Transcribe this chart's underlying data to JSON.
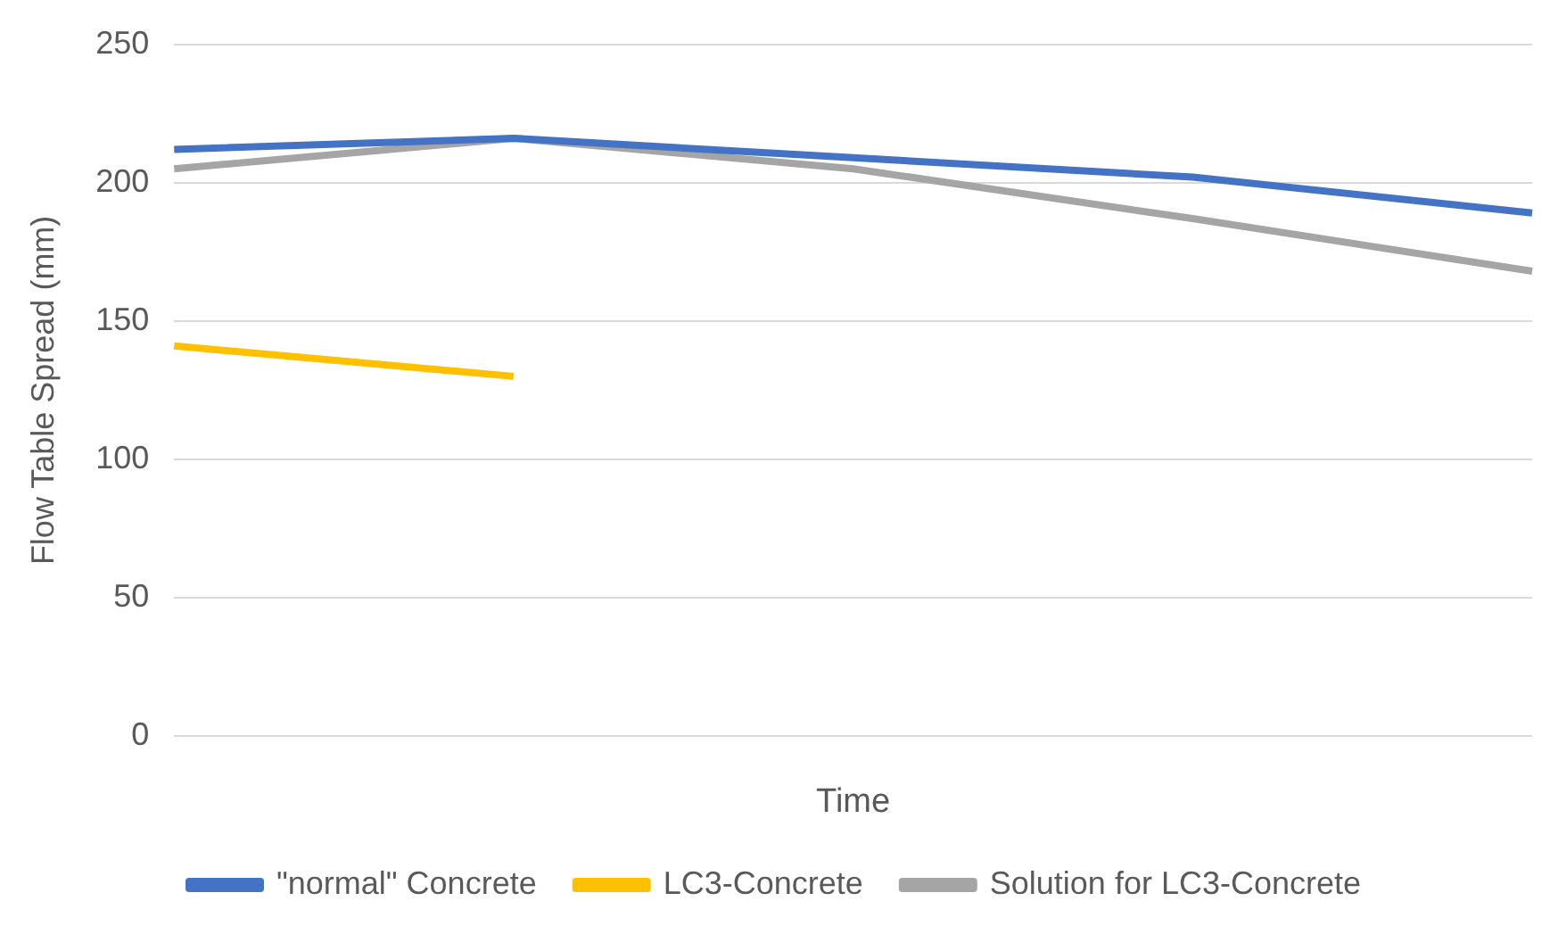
{
  "chart_data": {
    "type": "line",
    "xlabel": "Time",
    "ylabel": "Flow Table Spread (mm)",
    "categories": [
      null,
      null,
      null,
      null,
      null
    ],
    "series": [
      {
        "name": "\"normal\" Concrete",
        "color": "#4472c4",
        "values": [
          212,
          216,
          209,
          202,
          189
        ]
      },
      {
        "name": "LC3-Concrete",
        "color": "#ffc000",
        "values": [
          141,
          130,
          null,
          null,
          null
        ]
      },
      {
        "name": "Solution for LC3-Concrete",
        "color": "#a5a5a5",
        "values": [
          205,
          216,
          205,
          187,
          168
        ]
      }
    ],
    "ylim": [
      0,
      250
    ],
    "yticks": [
      0,
      50,
      100,
      150,
      200,
      250
    ],
    "grid": "y",
    "legend": "bottom",
    "marker": "none",
    "line_style": "solid"
  }
}
